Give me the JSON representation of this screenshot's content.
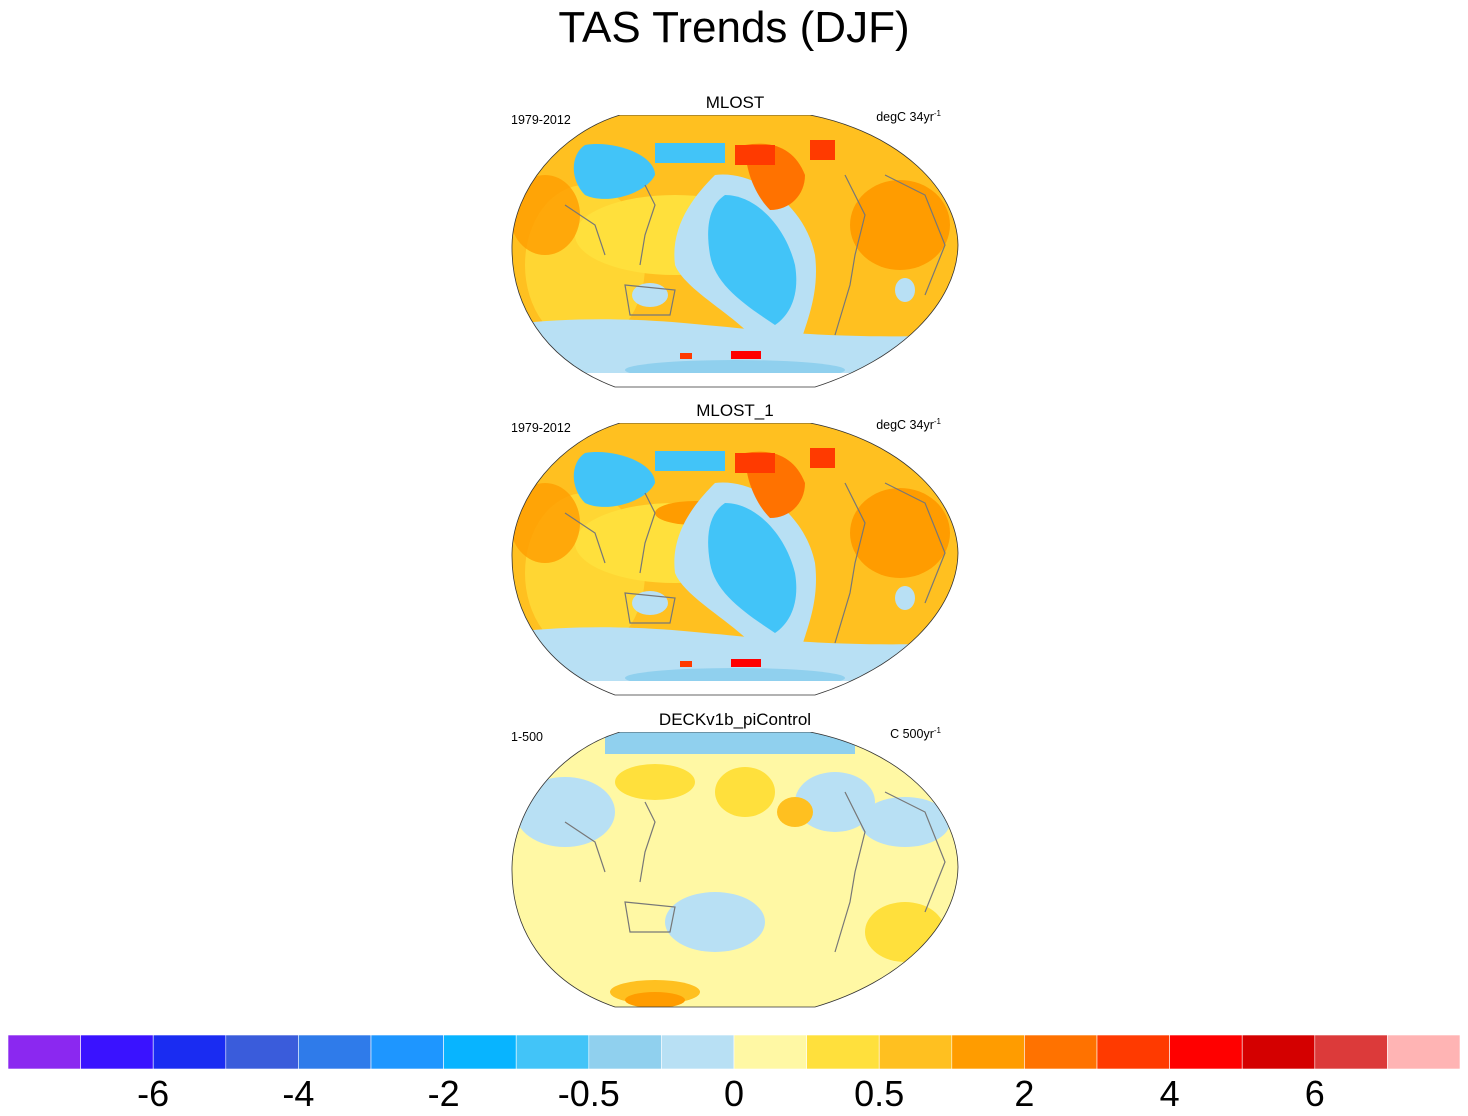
{
  "chart_data": {
    "type": "heatmap",
    "title": "TAS Trends (DJF)",
    "panels": [
      {
        "name": "MLOST",
        "period": "1979-2012",
        "units": "degC 34yr",
        "units_exp": "-1",
        "pattern": "warming over land and Atlantic, cooling in eastern Pacific and Siberia"
      },
      {
        "name": "MLOST_1",
        "period": "1979-2012",
        "units": "degC 34yr",
        "units_exp": "-1",
        "pattern": "warming over land and Atlantic, cooling in eastern Pacific and Siberia"
      },
      {
        "name": "DECKv1b_piControl",
        "period": "1-500",
        "units": "C 500yr",
        "units_exp": "-1",
        "pattern": "near zero trends, weak cooling at high northern latitudes"
      }
    ],
    "colorbar": {
      "colors": [
        "#8B28F0",
        "#3A12FF",
        "#1A2CF2",
        "#3A5CDB",
        "#2F7BEA",
        "#1E96FF",
        "#08B4FF",
        "#42C4F8",
        "#90D0EE",
        "#B8E0F4",
        "#FFF8A4",
        "#FFE03C",
        "#FFC020",
        "#FF9C00",
        "#FF7200",
        "#FF3A00",
        "#FF0000",
        "#D40000",
        "#DC3A3A",
        "#FFB4B4"
      ],
      "tick_labels": [
        "-6",
        "-4",
        "-2",
        "-0.5",
        "0",
        "0.5",
        "2",
        "4",
        "6"
      ]
    }
  }
}
